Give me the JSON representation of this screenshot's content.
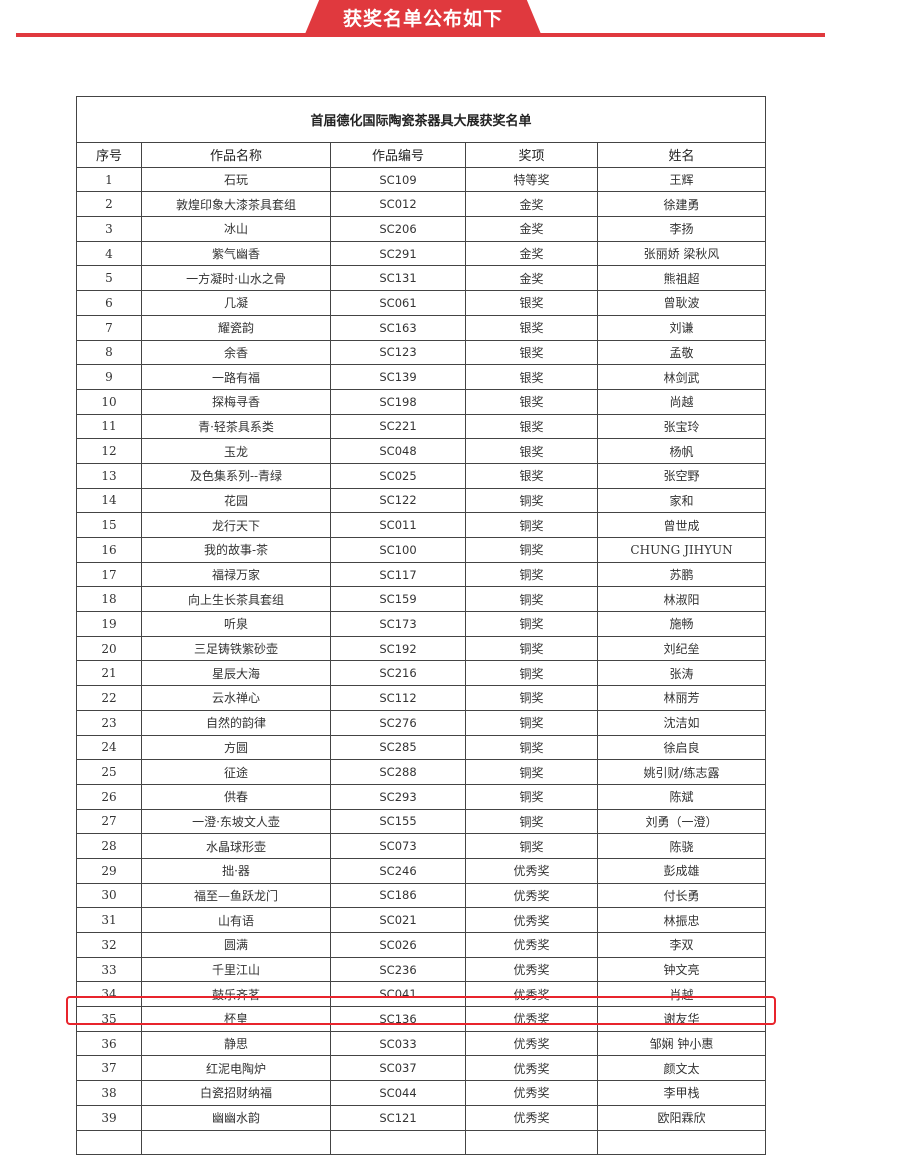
{
  "banner": {
    "title": "获奖名单公布如下",
    "color": "#e0393e"
  },
  "table": {
    "title": "首届德化国际陶瓷茶器具大展获奖名单",
    "columns": [
      "序号",
      "作品名称",
      "作品编号",
      "奖项",
      "姓名"
    ],
    "rows": [
      [
        "1",
        "石玩",
        "SC109",
        "特等奖",
        "王辉"
      ],
      [
        "2",
        "敦煌印象大漆茶具套组",
        "SC012",
        "金奖",
        "徐建勇"
      ],
      [
        "3",
        "冰山",
        "SC206",
        "金奖",
        "李扬"
      ],
      [
        "4",
        "紫气幽香",
        "SC291",
        "金奖",
        "张丽娇  梁秋风"
      ],
      [
        "5",
        "一方凝时·山水之骨",
        "SC131",
        "金奖",
        "熊祖超"
      ],
      [
        "6",
        "几凝",
        "SC061",
        "银奖",
        "曾耿波"
      ],
      [
        "7",
        "耀瓷韵",
        "SC163",
        "银奖",
        "刘谦"
      ],
      [
        "8",
        "余香",
        "SC123",
        "银奖",
        "孟敬"
      ],
      [
        "9",
        "一路有福",
        "SC139",
        "银奖",
        "林剑武"
      ],
      [
        "10",
        "探梅寻香",
        "SC198",
        "银奖",
        "尚越"
      ],
      [
        "11",
        "青·轻茶具系类",
        "SC221",
        "银奖",
        "张宝玲"
      ],
      [
        "12",
        "玉龙",
        "SC048",
        "银奖",
        "杨帆"
      ],
      [
        "13",
        "及色集系列--青绿",
        "SC025",
        "银奖",
        "张空野"
      ],
      [
        "14",
        "花园",
        "SC122",
        "铜奖",
        "家和"
      ],
      [
        "15",
        "龙行天下",
        "SC011",
        "铜奖",
        "曾世成"
      ],
      [
        "16",
        "我的故事-茶",
        "SC100",
        "铜奖",
        "CHUNG JIHYUN"
      ],
      [
        "17",
        "福禄万家",
        "SC117",
        "铜奖",
        "苏鹏"
      ],
      [
        "18",
        "向上生长茶具套组",
        "SC159",
        "铜奖",
        "林淑阳"
      ],
      [
        "19",
        "听泉",
        "SC173",
        "铜奖",
        "施畅"
      ],
      [
        "20",
        "三足铸铁紫砂壶",
        "SC192",
        "铜奖",
        "刘纪垒"
      ],
      [
        "21",
        "星辰大海",
        "SC216",
        "铜奖",
        "张涛"
      ],
      [
        "22",
        "云水禅心",
        "SC112",
        "铜奖",
        "林丽芳"
      ],
      [
        "23",
        "自然的韵律",
        "SC276",
        "铜奖",
        "沈洁如"
      ],
      [
        "24",
        "方圆",
        "SC285",
        "铜奖",
        "徐启良"
      ],
      [
        "25",
        "征途",
        "SC288",
        "铜奖",
        "姚引财/练志露"
      ],
      [
        "26",
        "供春",
        "SC293",
        "铜奖",
        "陈斌"
      ],
      [
        "27",
        "一澄·东坡文人壶",
        "SC155",
        "铜奖",
        "刘勇（一澄）"
      ],
      [
        "28",
        "水晶球形壶",
        "SC073",
        "铜奖",
        "陈骁"
      ],
      [
        "29",
        "拙·器",
        "SC246",
        "优秀奖",
        "彭成雄"
      ],
      [
        "30",
        "福至—鱼跃龙门",
        "SC186",
        "优秀奖",
        "付长勇"
      ],
      [
        "31",
        "山有语",
        "SC021",
        "优秀奖",
        "林振忠"
      ],
      [
        "32",
        "圆满",
        "SC026",
        "优秀奖",
        "李双"
      ],
      [
        "33",
        "千里江山",
        "SC236",
        "优秀奖",
        "钟文亮"
      ],
      [
        "34",
        "鼓乐齐茗",
        "SC041",
        "优秀奖",
        "肖越"
      ],
      [
        "35",
        "杯皇",
        "SC136",
        "优秀奖",
        "谢友华"
      ],
      [
        "36",
        "静思",
        "SC033",
        "优秀奖",
        "邹娴  钟小惠"
      ],
      [
        "37",
        "红泥电陶炉",
        "SC037",
        "优秀奖",
        "颜文太"
      ],
      [
        "38",
        "白瓷招财纳福",
        "SC044",
        "优秀奖",
        "李甲栈"
      ],
      [
        "39",
        "幽幽水韵",
        "SC121",
        "优秀奖",
        "欧阳霖欣"
      ]
    ],
    "highlighted_row": "34",
    "highlight_color": "#e8242c"
  }
}
